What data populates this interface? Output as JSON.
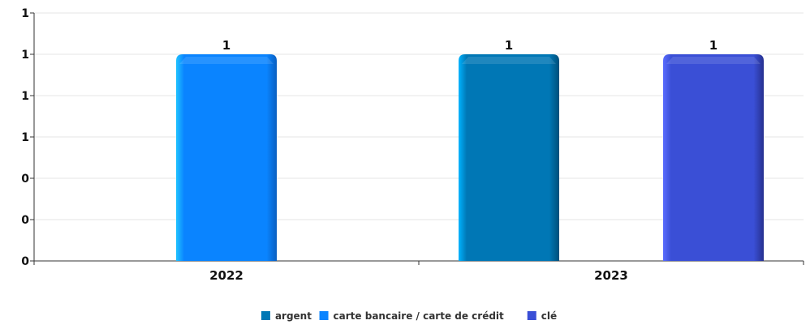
{
  "chart_data": {
    "type": "bar",
    "categories": [
      "2022",
      "2023"
    ],
    "series": [
      {
        "name": "argent",
        "values": [
          null,
          1
        ],
        "color": "#0077b5"
      },
      {
        "name": "carte bancaire / carte de crédit",
        "values": [
          1,
          null
        ],
        "color": "#0a84ff"
      },
      {
        "name": "clé",
        "values": [
          null,
          1
        ],
        "color": "#3a4fd6"
      }
    ],
    "y_tick_labels": [
      "0",
      "0",
      "0",
      "1",
      "1",
      "1",
      "1"
    ],
    "ylim": [
      0,
      1.2
    ],
    "grid": true,
    "legend_position": "bottom-center",
    "title": "",
    "xlabel": "",
    "ylabel": ""
  }
}
